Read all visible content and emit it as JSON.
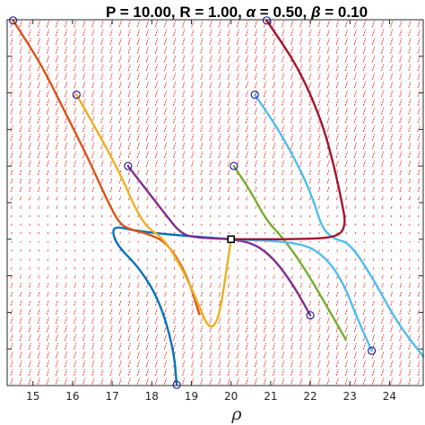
{
  "chart_data": {
    "type": "line",
    "title_segments": [
      {
        "text": "P = 10.00, R = 1.00, ",
        "italic": false
      },
      {
        "text": "α",
        "italic": true
      },
      {
        "text": " = 0.50, ",
        "italic": false
      },
      {
        "text": "β",
        "italic": true
      },
      {
        "text": " = 0.10",
        "italic": false
      }
    ],
    "xlabel": "ρ",
    "ylabel": "",
    "xlim": [
      14.35,
      24.85
    ],
    "ylim": [
      0,
      10
    ],
    "xticks": [
      15,
      16,
      17,
      18,
      19,
      20,
      21,
      22,
      23,
      24
    ],
    "yticks": [
      1,
      2,
      3,
      4,
      5,
      6,
      7,
      8,
      9
    ],
    "ytick_labels_shown": false,
    "grid": false,
    "vector_field": {
      "color": "#ff0000",
      "style": "dashed quiver"
    },
    "equilibrium": {
      "x": 20.0,
      "y": 4.0
    },
    "series": [
      {
        "color": "#0072bd",
        "start": [
          18.63,
          0.02
        ],
        "points": [
          [
            18.63,
            0.02
          ],
          [
            18.55,
            1.0
          ],
          [
            18.2,
            2.3
          ],
          [
            17.7,
            3.2
          ],
          [
            17.15,
            3.8
          ],
          [
            17.0,
            4.2
          ],
          [
            17.1,
            4.35
          ],
          [
            17.5,
            4.25
          ],
          [
            18.2,
            4.15
          ],
          [
            19.0,
            4.08
          ],
          [
            20.0,
            4.0
          ]
        ]
      },
      {
        "color": "#d95319",
        "start": [
          14.5,
          9.98
        ],
        "points": [
          [
            14.5,
            9.98
          ],
          [
            15.2,
            8.8
          ],
          [
            15.8,
            7.5
          ],
          [
            16.4,
            6.2
          ],
          [
            16.9,
            5.0
          ],
          [
            17.2,
            4.4
          ],
          [
            17.5,
            4.25
          ],
          [
            17.9,
            4.15
          ],
          [
            18.4,
            3.9
          ],
          [
            18.9,
            3.0
          ],
          [
            19.2,
            1.95
          ]
        ]
      },
      {
        "color": "#edb120",
        "start": [
          16.1,
          7.95
        ],
        "points": [
          [
            16.1,
            7.95
          ],
          [
            16.6,
            7.0
          ],
          [
            17.2,
            5.8
          ],
          [
            17.6,
            4.8
          ],
          [
            17.9,
            4.3
          ],
          [
            18.2,
            4.1
          ],
          [
            18.5,
            3.7
          ],
          [
            19.0,
            2.7
          ],
          [
            19.6,
            1.1
          ],
          [
            20.0,
            4.0
          ]
        ]
      },
      {
        "color": "#7e2f8e",
        "start": [
          17.4,
          6.0
        ],
        "points": [
          [
            17.4,
            6.0
          ],
          [
            17.9,
            5.3
          ],
          [
            18.4,
            4.6
          ],
          [
            18.7,
            4.2
          ],
          [
            19.0,
            4.05
          ],
          [
            20.0,
            4.0
          ]
        ]
      },
      {
        "color": "#7e2f8e",
        "start": [
          22.0,
          1.92
        ],
        "points": [
          [
            22.0,
            1.92
          ],
          [
            21.6,
            2.7
          ],
          [
            21.1,
            3.45
          ],
          [
            20.6,
            3.88
          ],
          [
            20.0,
            4.0
          ]
        ]
      },
      {
        "color": "#77ac30",
        "start": [
          20.07,
          6.0
        ],
        "points": [
          [
            20.07,
            6.0
          ],
          [
            20.5,
            5.3
          ],
          [
            20.9,
            4.5
          ],
          [
            21.3,
            4.05
          ],
          [
            21.8,
            3.3
          ],
          [
            22.4,
            2.2
          ],
          [
            22.9,
            1.25
          ]
        ]
      },
      {
        "color": "#4dbeee",
        "start": [
          20.6,
          7.95
        ],
        "points": [
          [
            20.6,
            7.95
          ],
          [
            21.2,
            7.0
          ],
          [
            21.8,
            5.8
          ],
          [
            22.1,
            5.0
          ],
          [
            22.3,
            4.3
          ],
          [
            22.6,
            4.0
          ],
          [
            23.0,
            3.9
          ],
          [
            23.6,
            2.9
          ],
          [
            24.2,
            1.7
          ],
          [
            24.85,
            0.8
          ]
        ]
      },
      {
        "color": "#4dbeee",
        "start": [
          23.55,
          0.95
        ],
        "points": [
          [
            23.55,
            0.95
          ],
          [
            23.2,
            1.8
          ],
          [
            22.8,
            2.9
          ],
          [
            22.3,
            3.6
          ],
          [
            21.7,
            3.92
          ],
          [
            20.0,
            4.0
          ]
        ]
      },
      {
        "color": "#a2142f",
        "start": [
          20.9,
          9.98
        ],
        "points": [
          [
            20.9,
            9.98
          ],
          [
            21.7,
            8.7
          ],
          [
            22.3,
            7.2
          ],
          [
            22.6,
            6.0
          ],
          [
            22.8,
            5.0
          ],
          [
            22.9,
            4.4
          ],
          [
            22.7,
            4.05
          ],
          [
            21.7,
            4.0
          ],
          [
            20.0,
            4.0
          ]
        ]
      }
    ]
  }
}
